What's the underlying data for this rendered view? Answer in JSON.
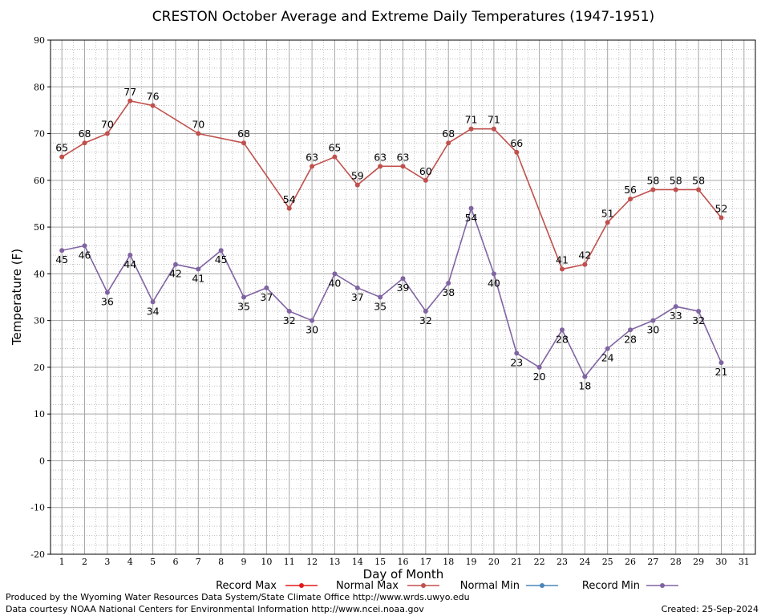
{
  "chart_data": {
    "type": "line",
    "title": "CRESTON October Average and Extreme Daily Temperatures (1947-1951)",
    "xlabel": "Day of Month",
    "ylabel": "Temperature (F)",
    "xlim": [
      0.5,
      31.5
    ],
    "ylim": [
      -20,
      90
    ],
    "x_ticks": [
      1,
      2,
      3,
      4,
      5,
      6,
      7,
      8,
      9,
      10,
      11,
      12,
      13,
      14,
      15,
      16,
      17,
      18,
      19,
      20,
      21,
      22,
      23,
      24,
      25,
      26,
      27,
      28,
      29,
      30,
      31
    ],
    "y_ticks": [
      -20,
      -10,
      0,
      10,
      20,
      30,
      40,
      50,
      60,
      70,
      80,
      90
    ],
    "grid": true,
    "legend_position": "bottom",
    "series": [
      {
        "name": "Record Max",
        "color": "#e31a1c",
        "x": [],
        "values": []
      },
      {
        "name": "Normal Max",
        "color": "#c0504d",
        "x": [
          1,
          2,
          3,
          4,
          5,
          7,
          9,
          11,
          12,
          13,
          14,
          15,
          16,
          17,
          18,
          19,
          20,
          21,
          23,
          24,
          25,
          26,
          27,
          28,
          29,
          30
        ],
        "values": [
          65,
          68,
          70,
          77,
          76,
          70,
          68,
          54,
          63,
          65,
          59,
          63,
          63,
          60,
          68,
          71,
          71,
          66,
          41,
          42,
          51,
          56,
          58,
          58,
          58,
          52
        ]
      },
      {
        "name": "Normal Min",
        "color": "#4a86b8",
        "x": [],
        "values": []
      },
      {
        "name": "Record Min",
        "color": "#8064a2",
        "x": [
          1,
          2,
          3,
          4,
          5,
          6,
          7,
          8,
          9,
          10,
          11,
          12,
          13,
          14,
          15,
          16,
          17,
          18,
          19,
          20,
          21,
          22,
          23,
          24,
          25,
          26,
          27,
          28,
          29,
          30
        ],
        "values": [
          45,
          46,
          36,
          44,
          34,
          42,
          41,
          45,
          35,
          37,
          32,
          30,
          40,
          37,
          35,
          39,
          32,
          38,
          54,
          40,
          23,
          20,
          28,
          18,
          24,
          28,
          30,
          33,
          32,
          21
        ]
      }
    ]
  },
  "footer": {
    "produced_by": "Produced by the Wyoming Water Resources Data System/State Climate Office http://www.wrds.uwyo.edu",
    "courtesy": "Data courtesy NOAA National Centers for Environmental Information http://www.ncei.noaa.gov",
    "created": "Created:  25-Sep-2024"
  }
}
